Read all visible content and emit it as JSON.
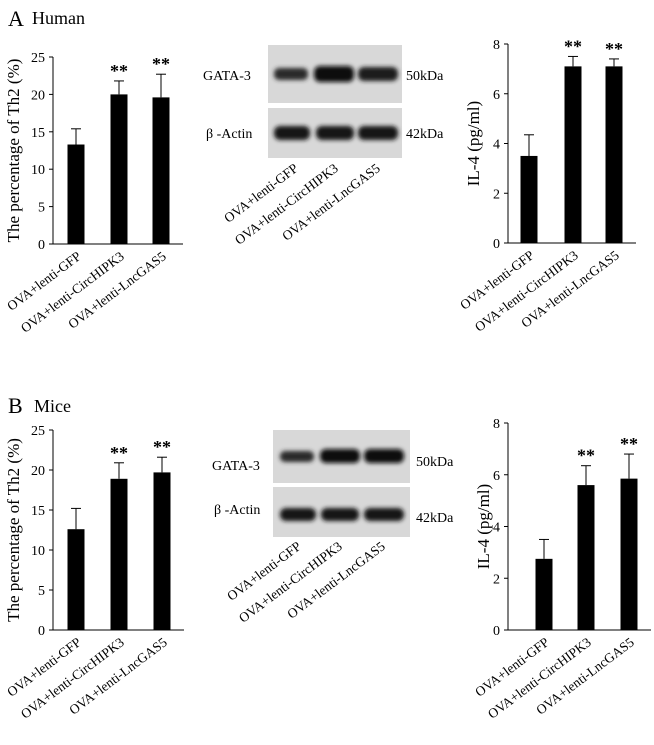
{
  "panels": [
    {
      "letter": "A",
      "subtitle": "Human",
      "blot": {
        "proteins": [
          {
            "name": "GATA-3",
            "size": "50kDa"
          },
          {
            "name": "β -Actin",
            "size": "42kDa"
          }
        ],
        "lanes": [
          "OVA+lenti-GFP",
          "OVA+lenti-CircHIPK3",
          "OVA+lenti-LncGAS5"
        ]
      }
    },
    {
      "letter": "B",
      "subtitle": "Mice",
      "blot": {
        "proteins": [
          {
            "name": "GATA-3",
            "size": "50kDa"
          },
          {
            "name": "β -Actin",
            "size": "42kDa"
          }
        ],
        "lanes": [
          "OVA+lenti-GFP",
          "OVA+lenti-CircHIPK3",
          "OVA+lenti-LncGAS5"
        ]
      }
    }
  ],
  "chart_data": [
    {
      "type": "bar",
      "panel": "A",
      "categories": [
        "OVA+lenti-GFP",
        "OVA+lenti-CircHIPK3",
        "OVA+lenti-LncGAS5"
      ],
      "values": [
        13.3,
        20.0,
        19.6
      ],
      "errors": [
        2.1,
        1.8,
        3.1
      ],
      "annotations": [
        "",
        "**",
        "**"
      ],
      "ylabel": "The percentage of Th2 (%)",
      "ylim": [
        0,
        25
      ],
      "yticks": [
        0,
        5,
        10,
        15,
        20,
        25
      ]
    },
    {
      "type": "bar",
      "panel": "A",
      "categories": [
        "OVA+lenti-GFP",
        "OVA+lenti-CircHIPK3",
        "OVA+lenti-LncGAS5"
      ],
      "values": [
        3.5,
        7.1,
        7.1
      ],
      "errors": [
        0.85,
        0.4,
        0.3
      ],
      "annotations": [
        "",
        "**",
        "**"
      ],
      "ylabel": "IL-4 (pg/ml)",
      "ylim": [
        0,
        8
      ],
      "yticks": [
        0,
        2,
        4,
        6,
        8
      ]
    },
    {
      "type": "bar",
      "panel": "B",
      "categories": [
        "OVA+lenti-GFP",
        "OVA+lenti-CircHIPK3",
        "OVA+lenti-LncGAS5"
      ],
      "values": [
        12.6,
        18.9,
        19.7
      ],
      "errors": [
        2.6,
        2.0,
        1.9
      ],
      "annotations": [
        "",
        "**",
        "**"
      ],
      "ylabel": "The percentage of Th2 (%)",
      "ylim": [
        0,
        25
      ],
      "yticks": [
        0,
        5,
        10,
        15,
        20,
        25
      ]
    },
    {
      "type": "bar",
      "panel": "B",
      "categories": [
        "OVA+lenti-GFP",
        "OVA+lenti-CircHIPK3",
        "OVA+lenti-LncGAS5"
      ],
      "values": [
        2.75,
        5.6,
        5.85
      ],
      "errors": [
        0.75,
        0.75,
        0.95
      ],
      "annotations": [
        "",
        "**",
        "**"
      ],
      "ylabel": "IL-4 (pg/ml)",
      "ylim": [
        0,
        8
      ],
      "yticks": [
        0,
        2,
        4,
        6,
        8
      ]
    }
  ]
}
